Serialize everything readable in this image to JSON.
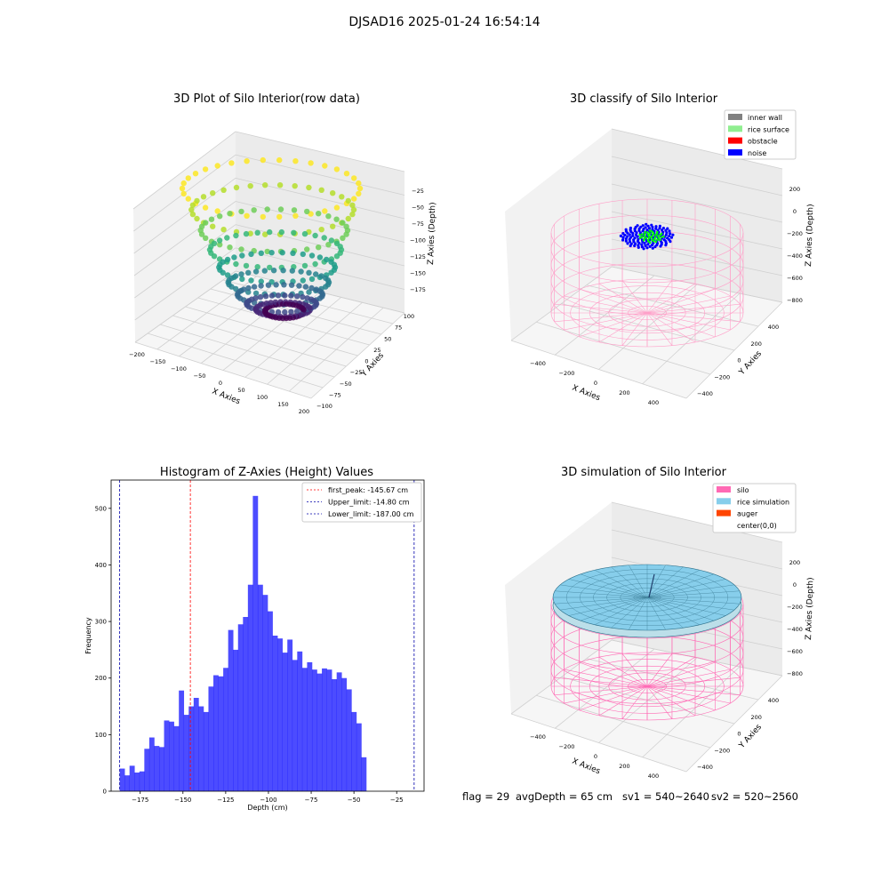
{
  "suptitle": "DJSAD16 2025-01-24 16:54:14",
  "footer": {
    "flag": "flag = 29",
    "avg": "avgDepth = 65 cm",
    "sv1": "sv1 = 540~2640",
    "sv2": "sv2 = 520~2560"
  },
  "chart_data": [
    {
      "type": "scatter3d",
      "title": "3D Plot of Silo Interior(row data)",
      "xlabel": "X Axies",
      "ylabel": "Y Axies",
      "zlabel": "Z Axies (Depth)",
      "x_ticks": [
        "−200",
        "−150",
        "−100",
        "−50",
        "0",
        "50",
        "100",
        "150",
        "200"
      ],
      "y_ticks": [
        "−100",
        "−75",
        "−50",
        "−25",
        "0",
        "25",
        "50",
        "75",
        "100"
      ],
      "z_ticks": [
        "−175",
        "−150",
        "−125",
        "−100",
        "−75",
        "−50",
        "−25"
      ],
      "xlim": [
        -200,
        200
      ],
      "ylim": [
        -100,
        100
      ],
      "zlim": [
        -187,
        -15
      ],
      "colormap": "viridis",
      "grid": true
    },
    {
      "type": "scatter3d",
      "title": "3D classify of Silo Interior",
      "xlabel": "X Axies",
      "ylabel": "Y Axies",
      "zlabel": "Z Axies (Depth)",
      "x_ticks": [
        "−400",
        "−200",
        "0",
        "200",
        "400"
      ],
      "y_ticks": [
        "−400",
        "−200",
        "0",
        "200",
        "400"
      ],
      "z_ticks": [
        "−800",
        "−600",
        "−400",
        "−200",
        "0",
        "200"
      ],
      "legend": [
        {
          "label": "inner wall",
          "color": "#808080"
        },
        {
          "label": "rice surface",
          "color": "#90ee90"
        },
        {
          "label": "obstacle",
          "color": "#ff0000"
        },
        {
          "label": "noise",
          "color": "#0000ff"
        }
      ],
      "legend_position": "top-right",
      "grid": true
    },
    {
      "type": "bar",
      "title": "Histogram of Z-Axies (Height) Values",
      "xlabel": "Depth (cm)",
      "ylabel": "Frequency",
      "xlim": [
        -192,
        -9
      ],
      "ylim": [
        0,
        550
      ],
      "x_ticks": [
        "−175",
        "−150",
        "−125",
        "−100",
        "−75",
        "−50",
        "−25"
      ],
      "x_tick_values": [
        -175,
        -150,
        -125,
        -100,
        -75,
        -50,
        -25
      ],
      "y_ticks": [
        0,
        100,
        200,
        300,
        400,
        500
      ],
      "bin_start": -187.0,
      "bin_width": 2.884,
      "values": [
        40,
        28,
        45,
        33,
        35,
        75,
        95,
        80,
        78,
        125,
        123,
        115,
        178,
        135,
        150,
        165,
        150,
        140,
        185,
        205,
        203,
        218,
        285,
        250,
        295,
        308,
        365,
        522,
        365,
        347,
        318,
        275,
        270,
        245,
        268,
        232,
        247,
        218,
        228,
        215,
        208,
        217,
        215,
        198,
        210,
        200,
        180,
        140,
        120,
        60
      ],
      "color": "#0000ff",
      "lines": [
        {
          "label": "first_peak: -145.67 cm",
          "x": -145.67,
          "color": "#ff0000"
        },
        {
          "label": "Upper_limit: -14.80 cm",
          "x": -14.8,
          "color": "#0000aa"
        },
        {
          "label": "Lower_limit: -187.00 cm",
          "x": -187.0,
          "color": "#0000aa"
        }
      ],
      "legend_position": "top-right"
    },
    {
      "type": "surface3d",
      "title": "3D simulation of Silo Interior",
      "xlabel": "X Axies",
      "ylabel": "Y Axies",
      "zlabel": "Z Axies (Depth)",
      "x_ticks": [
        "−400",
        "−200",
        "0",
        "200",
        "400"
      ],
      "y_ticks": [
        "−400",
        "−200",
        "0",
        "200",
        "400"
      ],
      "z_ticks": [
        "−800",
        "−600",
        "−400",
        "−200",
        "0",
        "200"
      ],
      "legend": [
        {
          "label": "silo",
          "color": "#ff69b4"
        },
        {
          "label": "rice simulation",
          "color": "#87ceeb"
        },
        {
          "label": "auger",
          "color": "#ff4500"
        },
        {
          "label": "center(0,0)",
          "color": ""
        }
      ],
      "legend_position": "top-right",
      "grid": true
    }
  ]
}
